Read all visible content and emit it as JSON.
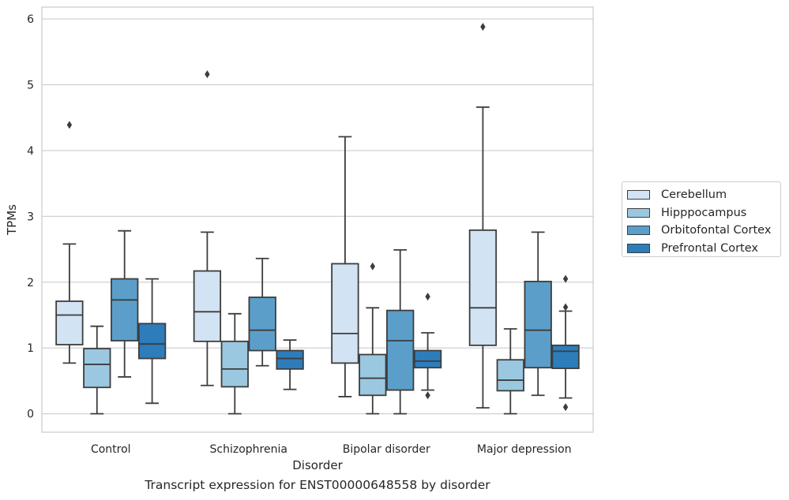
{
  "caption": "Transcript expression for ENST00000648558 by disorder",
  "chart_data": {
    "type": "box",
    "title": "",
    "xlabel": "Disorder",
    "ylabel": "TPMs",
    "ylim": [
      -0.28,
      6.18
    ],
    "yticks": [
      "0",
      "1",
      "2",
      "3",
      "4",
      "5",
      "6"
    ],
    "grid": true,
    "legend_position": "right",
    "categories": [
      "Control",
      "Schizophrenia",
      "Bipolar disorder",
      "Major depression"
    ],
    "series": [
      {
        "name": "Cerebellum",
        "color": "#d2e3f3",
        "boxes": [
          {
            "whisker_low": 0.77,
            "q1": 1.05,
            "median": 1.5,
            "q3": 1.71,
            "whisker_high": 2.58,
            "outliers": [
              4.39
            ]
          },
          {
            "whisker_low": 0.43,
            "q1": 1.1,
            "median": 1.55,
            "q3": 2.17,
            "whisker_high": 2.76,
            "outliers": [
              5.16
            ]
          },
          {
            "whisker_low": 0.26,
            "q1": 0.77,
            "median": 1.22,
            "q3": 2.28,
            "whisker_high": 4.21,
            "outliers": []
          },
          {
            "whisker_low": 0.09,
            "q1": 1.04,
            "median": 1.61,
            "q3": 2.79,
            "whisker_high": 4.66,
            "outliers": [
              5.88
            ]
          }
        ]
      },
      {
        "name": "Hipppocampus",
        "color": "#9ac8e0",
        "boxes": [
          {
            "whisker_low": 0.0,
            "q1": 0.4,
            "median": 0.75,
            "q3": 0.99,
            "whisker_high": 1.33,
            "outliers": []
          },
          {
            "whisker_low": 0.0,
            "q1": 0.41,
            "median": 0.68,
            "q3": 1.1,
            "whisker_high": 1.52,
            "outliers": []
          },
          {
            "whisker_low": 0.0,
            "q1": 0.28,
            "median": 0.54,
            "q3": 0.9,
            "whisker_high": 1.61,
            "outliers": [
              2.24
            ]
          },
          {
            "whisker_low": 0.0,
            "q1": 0.35,
            "median": 0.51,
            "q3": 0.82,
            "whisker_high": 1.29,
            "outliers": []
          }
        ]
      },
      {
        "name": "Orbitofontal Cortex",
        "color": "#5b9ec9",
        "boxes": [
          {
            "whisker_low": 0.56,
            "q1": 1.11,
            "median": 1.73,
            "q3": 2.05,
            "whisker_high": 2.78,
            "outliers": []
          },
          {
            "whisker_low": 0.73,
            "q1": 0.96,
            "median": 1.27,
            "q3": 1.77,
            "whisker_high": 2.36,
            "outliers": []
          },
          {
            "whisker_low": 0.0,
            "q1": 0.36,
            "median": 1.11,
            "q3": 1.57,
            "whisker_high": 2.49,
            "outliers": []
          },
          {
            "whisker_low": 0.28,
            "q1": 0.7,
            "median": 1.27,
            "q3": 2.01,
            "whisker_high": 2.76,
            "outliers": []
          }
        ]
      },
      {
        "name": "Prefrontal Cortex",
        "color": "#2d7dbb",
        "boxes": [
          {
            "whisker_low": 0.16,
            "q1": 0.84,
            "median": 1.06,
            "q3": 1.37,
            "whisker_high": 2.05,
            "outliers": []
          },
          {
            "whisker_low": 0.37,
            "q1": 0.68,
            "median": 0.84,
            "q3": 0.96,
            "whisker_high": 1.12,
            "outliers": []
          },
          {
            "whisker_low": 0.36,
            "q1": 0.7,
            "median": 0.8,
            "q3": 0.96,
            "whisker_high": 1.23,
            "outliers": [
              1.78,
              0.28
            ]
          },
          {
            "whisker_low": 0.24,
            "q1": 0.69,
            "median": 0.95,
            "q3": 1.04,
            "whisker_high": 1.56,
            "outliers": [
              2.05,
              1.62,
              0.1
            ]
          }
        ]
      }
    ]
  }
}
